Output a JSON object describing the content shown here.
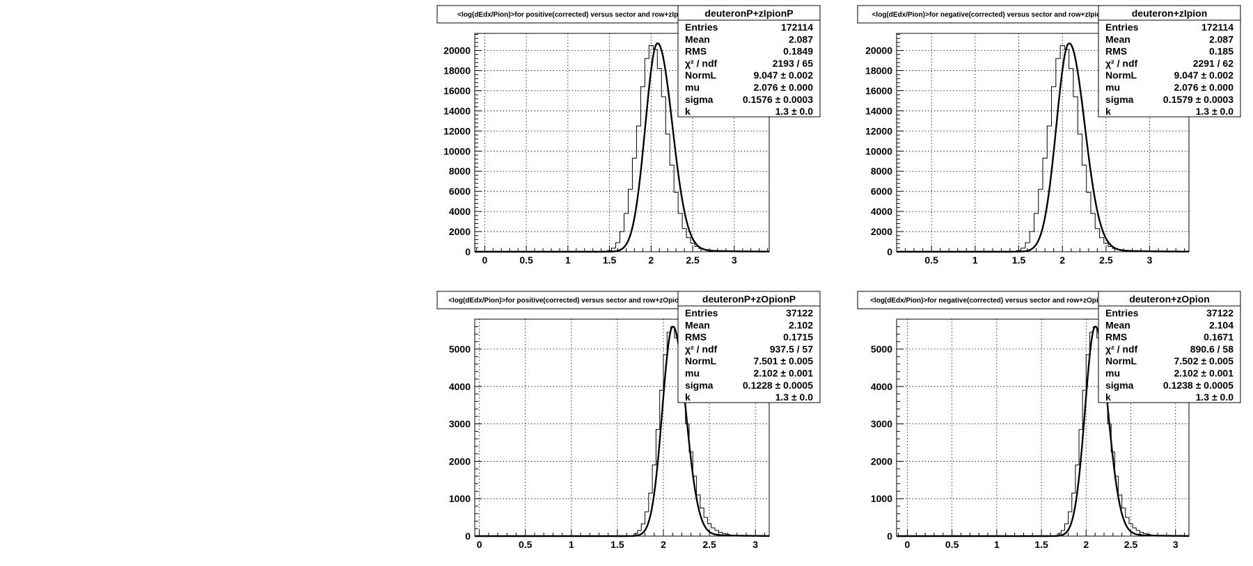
{
  "chart_data": [
    {
      "type": "histogram",
      "title": "<log(dEdx/Pion)>for positive(corrected) versus sector and row+zIpionP",
      "stats": {
        "header": "deuteronP+zIpionP",
        "rows": [
          {
            "label": "Entries",
            "value": "172114"
          },
          {
            "label": "Mean",
            "value": "2.087"
          },
          {
            "label": "RMS",
            "value": "0.1849"
          },
          {
            "label": "χ² / ndf",
            "value": "2193 / 65"
          },
          {
            "label": "NormL",
            "value": "9.047 ± 0.002"
          },
          {
            "label": "mu",
            "value": "2.076 ± 0.000"
          },
          {
            "label": "sigma",
            "value": "0.1576 ± 0.0003"
          },
          {
            "label": "k",
            "value": "1.3 ± 0.0"
          }
        ]
      },
      "xlim": [
        -0.12,
        3.42
      ],
      "ylim": [
        0,
        21700
      ],
      "x_ticks": [
        0,
        0.5,
        1,
        1.5,
        2,
        2.5,
        3
      ],
      "x_tick_labels": [
        "0",
        "0.5",
        "1",
        "1.5",
        "2",
        "2.5",
        "3"
      ],
      "y_ticks": [
        0,
        2000,
        4000,
        6000,
        8000,
        10000,
        12000,
        14000,
        16000,
        18000,
        20000
      ],
      "y_tick_labels": [
        "0",
        "2000",
        "4000",
        "6000",
        "8000",
        "10000",
        "12000",
        "14000",
        "16000",
        "18000",
        "20000"
      ],
      "grid": true,
      "fit": {
        "peak": 20700,
        "mu": 2.076,
        "sigma": 0.1576
      },
      "bin_width": 0.05,
      "bin_centers": [
        1.5,
        1.55,
        1.6,
        1.65,
        1.7,
        1.75,
        1.8,
        1.85,
        1.9,
        1.95,
        2.0,
        2.05,
        2.1,
        2.15,
        2.2,
        2.25,
        2.3,
        2.35,
        2.4,
        2.45,
        2.5,
        2.55,
        2.6,
        2.65,
        2.7,
        2.75,
        2.8
      ],
      "bin_values": [
        120,
        350,
        900,
        2000,
        3800,
        6200,
        9300,
        12500,
        16400,
        19200,
        20500,
        20100,
        18200,
        15400,
        11700,
        8600,
        5900,
        3800,
        2300,
        1400,
        850,
        520,
        330,
        220,
        140,
        90,
        60
      ]
    },
    {
      "type": "histogram",
      "title": "<log(dEdx/Pion)>for negative(corrected) versus sector and row+zIpion",
      "stats": {
        "header": "deuteron+zIpion",
        "rows": [
          {
            "label": "Entries",
            "value": "172114"
          },
          {
            "label": "Mean",
            "value": "2.087"
          },
          {
            "label": "RMS",
            "value": "0.185"
          },
          {
            "label": "χ² / ndf",
            "value": "2291 / 62"
          },
          {
            "label": "NormL",
            "value": "9.047 ± 0.002"
          },
          {
            "label": "mu",
            "value": "2.076 ± 0.000"
          },
          {
            "label": "sigma",
            "value": "0.1579 ± 0.0003"
          },
          {
            "label": "k",
            "value": "1.3 ± 0.0"
          }
        ]
      },
      "xlim": [
        0.1,
        3.45
      ],
      "ylim": [
        0,
        21700
      ],
      "x_ticks": [
        0.5,
        1,
        1.5,
        2,
        2.5,
        3
      ],
      "x_tick_labels": [
        "0.5",
        "1",
        "1.5",
        "2",
        "2.5",
        "3"
      ],
      "y_ticks": [
        0,
        2000,
        4000,
        6000,
        8000,
        10000,
        12000,
        14000,
        16000,
        18000,
        20000
      ],
      "y_tick_labels": [
        "0",
        "2000",
        "4000",
        "6000",
        "8000",
        "10000",
        "12000",
        "14000",
        "16000",
        "18000",
        "20000"
      ],
      "grid": true,
      "fit": {
        "peak": 20700,
        "mu": 2.076,
        "sigma": 0.1579
      },
      "bin_width": 0.05,
      "bin_centers": [
        1.5,
        1.55,
        1.6,
        1.65,
        1.7,
        1.75,
        1.8,
        1.85,
        1.9,
        1.95,
        2.0,
        2.05,
        2.1,
        2.15,
        2.2,
        2.25,
        2.3,
        2.35,
        2.4,
        2.45,
        2.5,
        2.55,
        2.6,
        2.65,
        2.7,
        2.75,
        2.8
      ],
      "bin_values": [
        120,
        350,
        900,
        2000,
        3800,
        6200,
        9300,
        12500,
        16400,
        19200,
        20500,
        20100,
        18200,
        15400,
        11700,
        8600,
        5900,
        3800,
        2300,
        1400,
        850,
        520,
        330,
        220,
        140,
        90,
        60
      ]
    },
    {
      "type": "histogram",
      "title": "<log(dEdx/Pion)>for positive(corrected) versus sector and row+zOpionP",
      "stats": {
        "header": "deuteronP+zOpionP",
        "rows": [
          {
            "label": "Entries",
            "value": "37122"
          },
          {
            "label": "Mean",
            "value": "2.102"
          },
          {
            "label": "RMS",
            "value": "0.1715"
          },
          {
            "label": "χ² / ndf",
            "value": "937.5 / 57"
          },
          {
            "label": "NormL",
            "value": "7.501 ± 0.005"
          },
          {
            "label": "mu",
            "value": "2.102 ± 0.001"
          },
          {
            "label": "sigma",
            "value": "0.1228 ± 0.0005"
          },
          {
            "label": "k",
            "value": "1.3 ± 0.0"
          }
        ]
      },
      "xlim": [
        -0.05,
        3.15
      ],
      "ylim": [
        0,
        5800
      ],
      "x_ticks": [
        0,
        0.5,
        1,
        1.5,
        2,
        2.5,
        3
      ],
      "x_tick_labels": [
        "0",
        "0.5",
        "1",
        "1.5",
        "2",
        "2.5",
        "3"
      ],
      "y_ticks": [
        0,
        1000,
        2000,
        3000,
        4000,
        5000
      ],
      "y_tick_labels": [
        "0",
        "1000",
        "2000",
        "3000",
        "4000",
        "5000"
      ],
      "grid": true,
      "fit": {
        "peak": 5600,
        "mu": 2.102,
        "sigma": 0.1228
      },
      "bin_width": 0.04,
      "bin_centers": [
        1.7,
        1.74,
        1.78,
        1.82,
        1.86,
        1.9,
        1.94,
        1.98,
        2.02,
        2.06,
        2.1,
        2.14,
        2.18,
        2.22,
        2.26,
        2.3,
        2.34,
        2.38,
        2.42,
        2.46,
        2.5,
        2.54,
        2.58,
        2.62,
        2.66,
        2.7
      ],
      "bin_values": [
        60,
        150,
        330,
        650,
        1150,
        1900,
        2850,
        3900,
        4850,
        5450,
        5600,
        5300,
        4650,
        3850,
        3000,
        2250,
        1600,
        1100,
        750,
        500,
        330,
        220,
        150,
        100,
        70,
        45
      ]
    },
    {
      "type": "histogram",
      "title": "<log(dEdx/Pion)>for negative(corrected) versus sector and row+zOpion",
      "stats": {
        "header": "deuteron+zOpion",
        "rows": [
          {
            "label": "Entries",
            "value": "37122"
          },
          {
            "label": "Mean",
            "value": "2.104"
          },
          {
            "label": "RMS",
            "value": "0.1671"
          },
          {
            "label": "χ² / ndf",
            "value": "890.6 / 58"
          },
          {
            "label": "NormL",
            "value": "7.502 ± 0.005"
          },
          {
            "label": "mu",
            "value": "2.102 ± 0.001"
          },
          {
            "label": "sigma",
            "value": "0.1238 ± 0.0005"
          },
          {
            "label": "k",
            "value": "1.3 ± 0.0"
          }
        ]
      },
      "xlim": [
        -0.12,
        3.15
      ],
      "ylim": [
        0,
        5800
      ],
      "x_ticks": [
        0,
        0.5,
        1,
        1.5,
        2,
        2.5,
        3
      ],
      "x_tick_labels": [
        "0",
        "0.5",
        "1",
        "1.5",
        "2",
        "2.5",
        "3"
      ],
      "y_ticks": [
        0,
        1000,
        2000,
        3000,
        4000,
        5000
      ],
      "y_tick_labels": [
        "0",
        "1000",
        "2000",
        "3000",
        "4000",
        "5000"
      ],
      "grid": true,
      "fit": {
        "peak": 5600,
        "mu": 2.102,
        "sigma": 0.1238
      },
      "bin_width": 0.04,
      "bin_centers": [
        1.7,
        1.74,
        1.78,
        1.82,
        1.86,
        1.9,
        1.94,
        1.98,
        2.02,
        2.06,
        2.1,
        2.14,
        2.18,
        2.22,
        2.26,
        2.3,
        2.34,
        2.38,
        2.42,
        2.46,
        2.5,
        2.54,
        2.58,
        2.62,
        2.66,
        2.7
      ],
      "bin_values": [
        60,
        150,
        330,
        650,
        1150,
        1900,
        2850,
        3900,
        4850,
        5450,
        5600,
        5300,
        4650,
        3850,
        3000,
        2250,
        1600,
        1100,
        750,
        500,
        330,
        220,
        150,
        100,
        70,
        45
      ]
    }
  ]
}
